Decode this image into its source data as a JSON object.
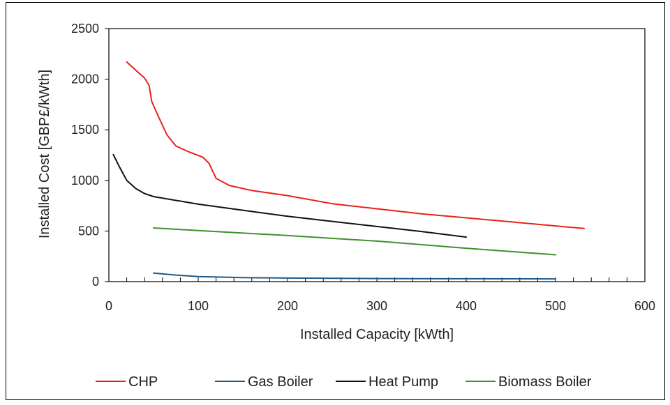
{
  "chart_data": {
    "type": "line",
    "title": "",
    "xlabel": "Installed Capacity [kWth]",
    "ylabel": "Installed Cost [GBP£/kWth]",
    "xlim": [
      0,
      600
    ],
    "ylim": [
      0,
      2500
    ],
    "xticks": [
      0,
      100,
      200,
      300,
      400,
      500,
      600
    ],
    "yticks": [
      0,
      500,
      1000,
      1500,
      2000,
      2500
    ],
    "x_minor_step": 20,
    "grid": false,
    "legend_position": "bottom",
    "series": [
      {
        "name": "CHP",
        "color": "#e8211a",
        "points": [
          [
            20,
            2170
          ],
          [
            30,
            2090
          ],
          [
            40,
            2010
          ],
          [
            45,
            1940
          ],
          [
            48,
            1780
          ],
          [
            55,
            1640
          ],
          [
            65,
            1450
          ],
          [
            75,
            1340
          ],
          [
            90,
            1280
          ],
          [
            105,
            1230
          ],
          [
            112,
            1170
          ],
          [
            120,
            1020
          ],
          [
            135,
            950
          ],
          [
            160,
            900
          ],
          [
            200,
            850
          ],
          [
            250,
            770
          ],
          [
            300,
            720
          ],
          [
            350,
            670
          ],
          [
            400,
            630
          ],
          [
            450,
            590
          ],
          [
            500,
            550
          ],
          [
            532,
            525
          ]
        ]
      },
      {
        "name": "Gas Boiler",
        "color": "#1f5a8a",
        "points": [
          [
            50,
            85
          ],
          [
            75,
            65
          ],
          [
            100,
            50
          ],
          [
            150,
            40
          ],
          [
            200,
            35
          ],
          [
            300,
            30
          ],
          [
            400,
            28
          ],
          [
            500,
            27
          ]
        ]
      },
      {
        "name": "Heat Pump",
        "color": "#111111",
        "points": [
          [
            5,
            1255
          ],
          [
            12,
            1130
          ],
          [
            20,
            1000
          ],
          [
            30,
            920
          ],
          [
            40,
            870
          ],
          [
            50,
            840
          ],
          [
            100,
            765
          ],
          [
            150,
            705
          ],
          [
            200,
            645
          ],
          [
            250,
            595
          ],
          [
            300,
            545
          ],
          [
            350,
            495
          ],
          [
            400,
            440
          ]
        ]
      },
      {
        "name": "Biomass Boiler",
        "color": "#3f8f2e",
        "points": [
          [
            50,
            530
          ],
          [
            100,
            505
          ],
          [
            200,
            455
          ],
          [
            300,
            400
          ],
          [
            400,
            330
          ],
          [
            500,
            265
          ]
        ]
      }
    ]
  }
}
